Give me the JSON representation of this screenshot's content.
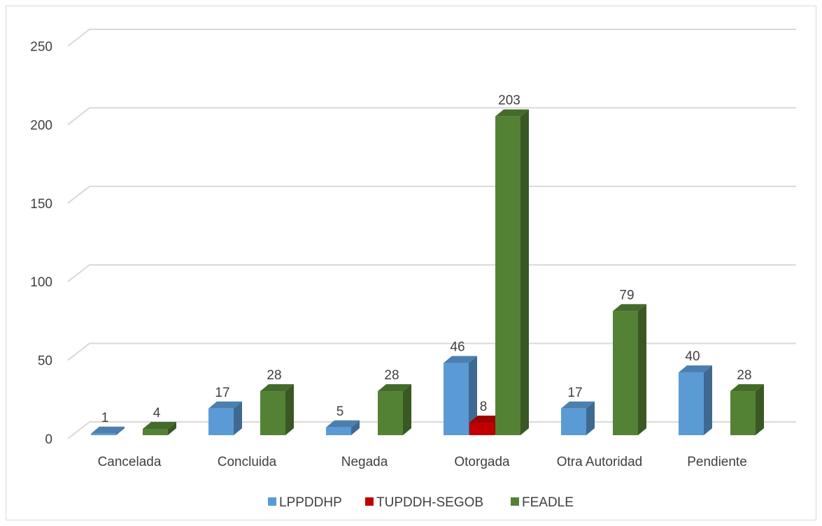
{
  "chart_data": {
    "type": "bar3d",
    "categories": [
      "Cancelada",
      "Concluida",
      "Negada",
      "Otorgada",
      "Otra Autoridad",
      "Pendiente"
    ],
    "series": [
      {
        "name": "LPPDDHP",
        "color": "#5b9bd5",
        "values": [
          1,
          17,
          5,
          46,
          17,
          40
        ]
      },
      {
        "name": "TUPDDH-SEGOB",
        "color": "#c00000",
        "values": [
          null,
          null,
          null,
          8,
          null,
          null
        ]
      },
      {
        "name": "FEADLE",
        "color": "#548235",
        "values": [
          4,
          28,
          28,
          203,
          79,
          28
        ]
      }
    ],
    "ylim": [
      0,
      250
    ],
    "yticks": [
      0,
      50,
      100,
      150,
      200,
      250
    ],
    "grid": true,
    "legend": "bottom"
  }
}
